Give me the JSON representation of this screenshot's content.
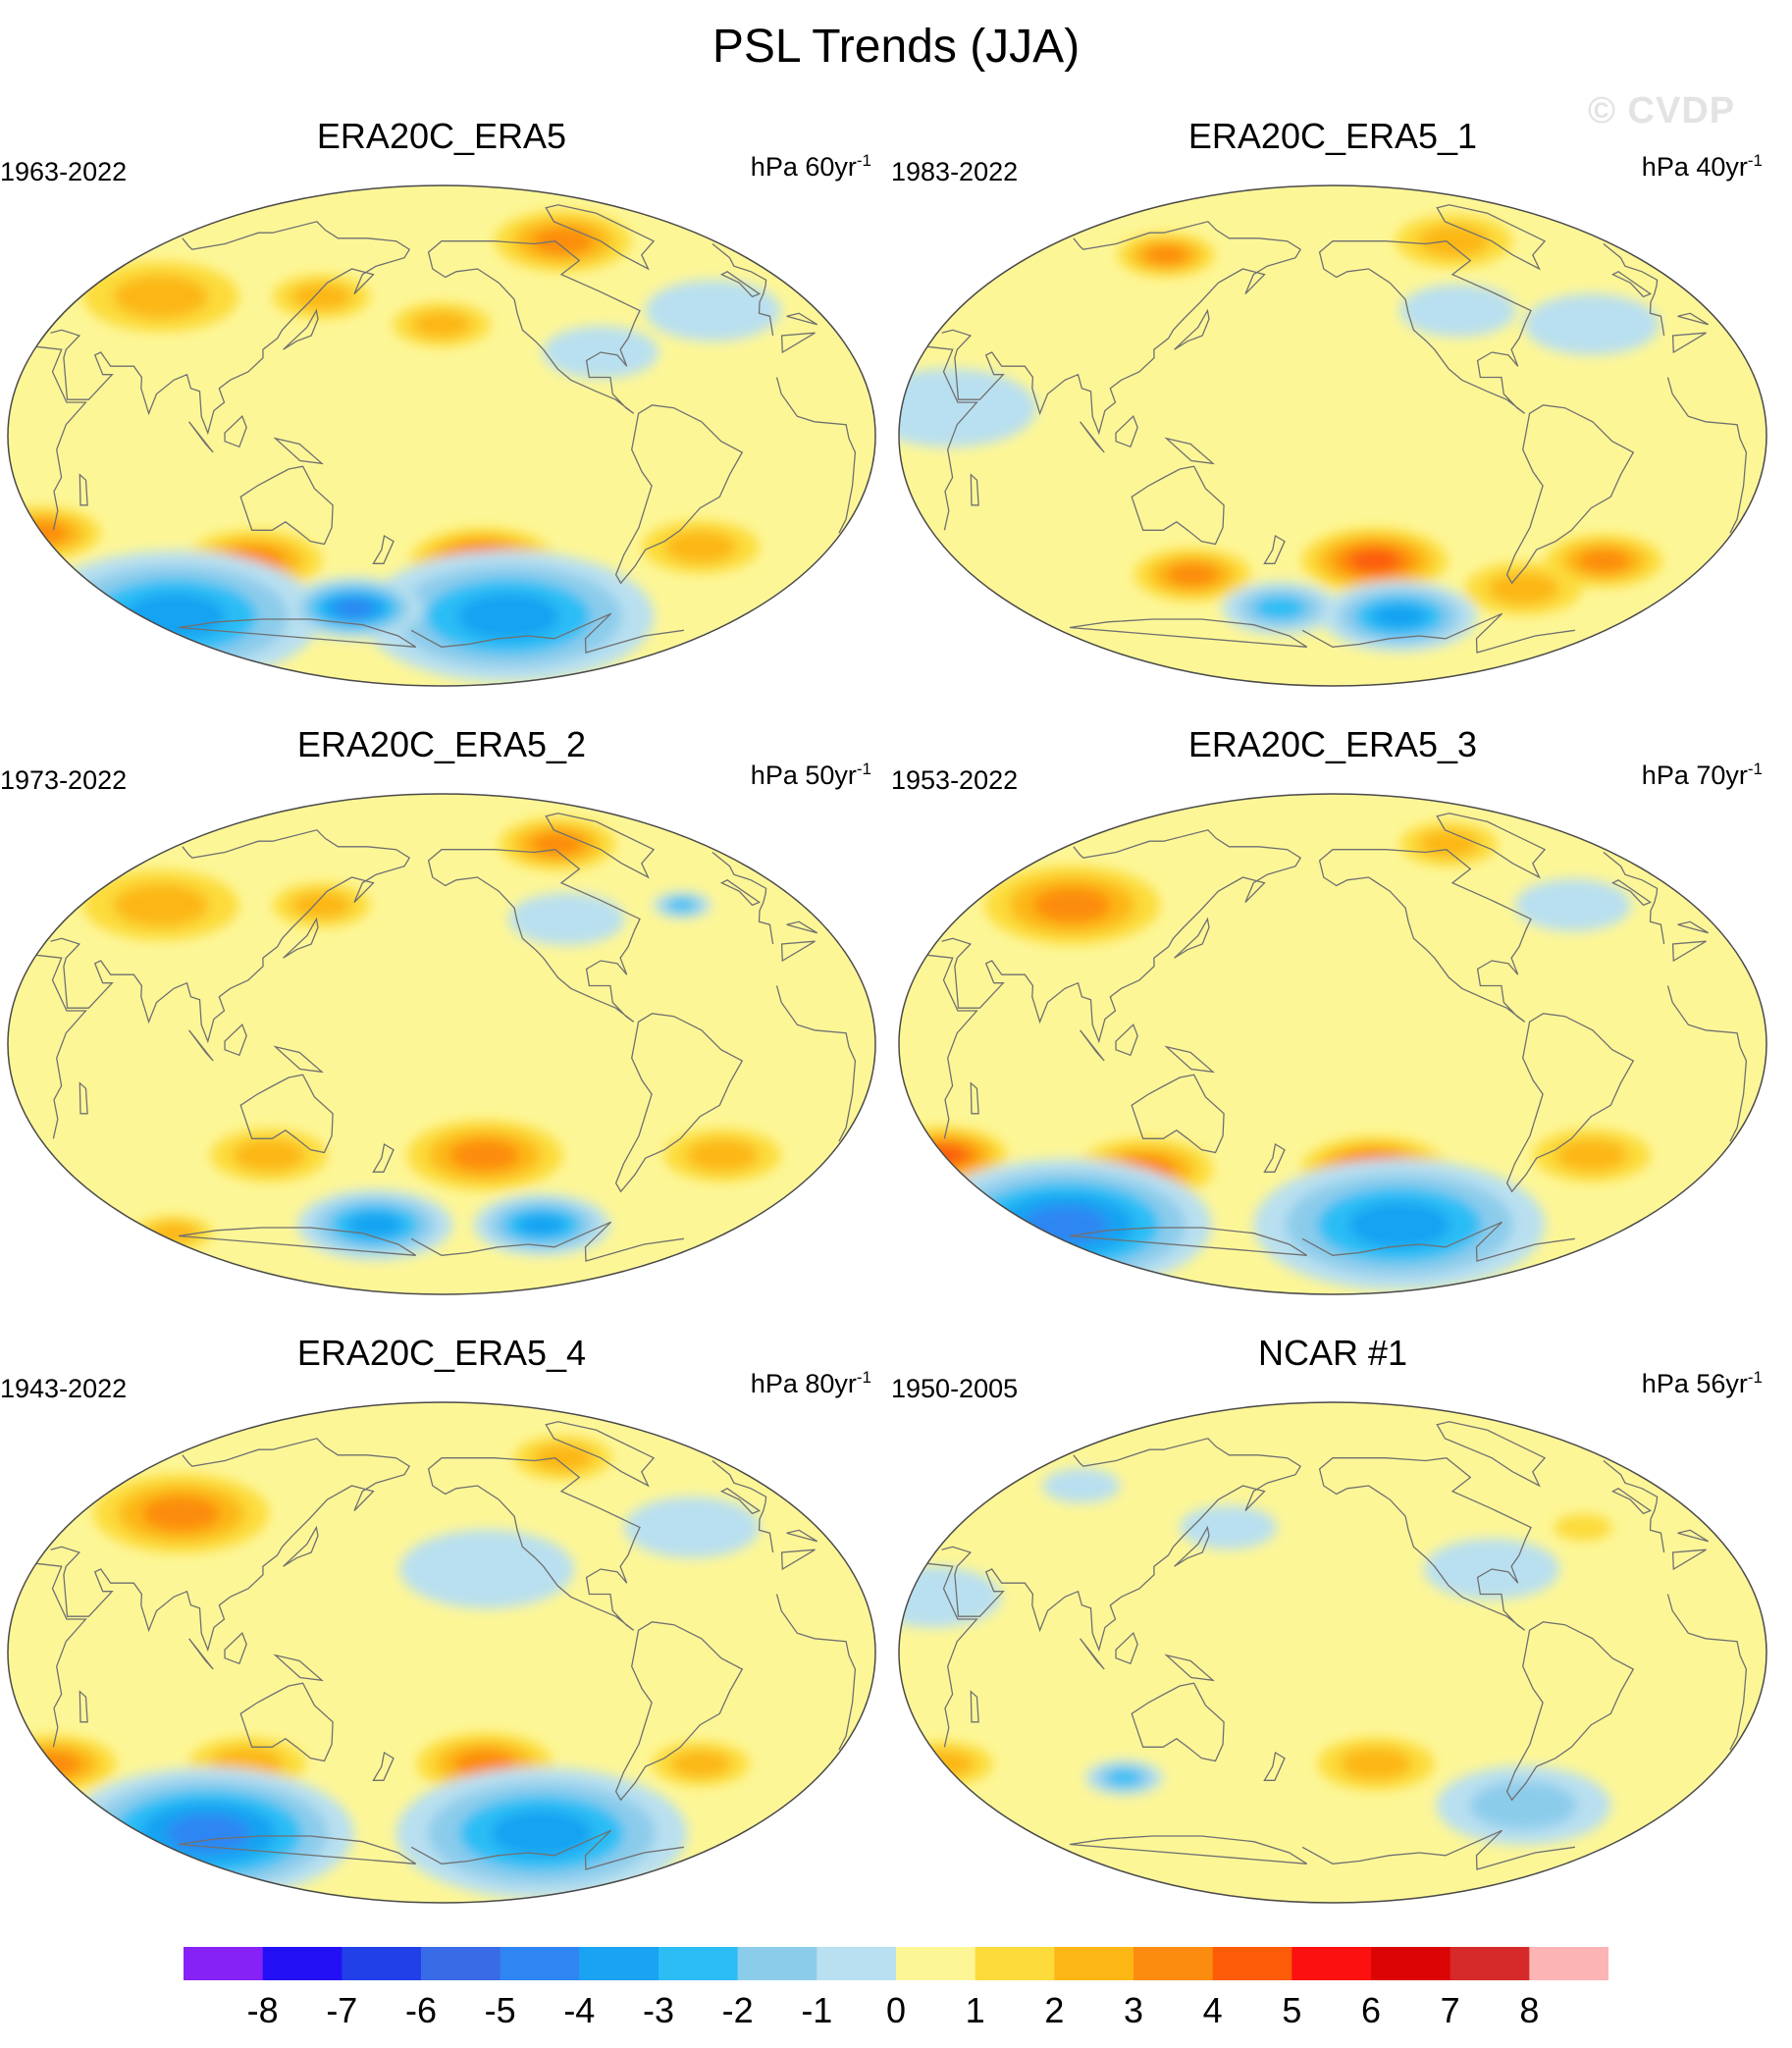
{
  "title": "PSL Trends (JJA)",
  "watermark": "© CVDP",
  "panels": [
    {
      "title": "ERA20C_ERA5",
      "years": "1963-2022",
      "units_base": "hPa 60yr",
      "units_exp": "-1",
      "field": [
        {
          "lon": -80,
          "lat": 70,
          "r": 0.14,
          "v": 3
        },
        {
          "lon": 60,
          "lat": 50,
          "r": 0.16,
          "v": 2
        },
        {
          "lon": 140,
          "lat": 50,
          "r": 0.1,
          "v": 2
        },
        {
          "lon": -160,
          "lat": 40,
          "r": 0.1,
          "v": 2
        },
        {
          "lon": 20,
          "lat": -35,
          "r": 0.12,
          "v": 3
        },
        {
          "lon": 110,
          "lat": -45,
          "r": 0.14,
          "v": 3
        },
        {
          "lon": -140,
          "lat": -45,
          "r": 0.15,
          "v": 4
        },
        {
          "lon": -40,
          "lat": -40,
          "r": 0.12,
          "v": 2
        },
        {
          "lon": -30,
          "lat": 45,
          "r": 0.14,
          "v": -1
        },
        {
          "lon": -90,
          "lat": 30,
          "r": 0.12,
          "v": -1
        },
        {
          "lon": -120,
          "lat": -65,
          "r": 0.3,
          "v": -4
        },
        {
          "lon": 40,
          "lat": -65,
          "r": 0.3,
          "v": -4
        },
        {
          "lon": 150,
          "lat": -62,
          "r": 0.14,
          "v": -5
        }
      ]
    },
    {
      "title": "ERA20C_ERA5_1",
      "years": "1983-2022",
      "units_base": "hPa 40yr",
      "units_exp": "-1",
      "field": [
        {
          "lon": -80,
          "lat": 70,
          "r": 0.12,
          "v": 2
        },
        {
          "lon": 100,
          "lat": 65,
          "r": 0.1,
          "v": 3
        },
        {
          "lon": -140,
          "lat": -45,
          "r": 0.15,
          "v": 4
        },
        {
          "lon": 130,
          "lat": -50,
          "r": 0.12,
          "v": 3
        },
        {
          "lon": -30,
          "lat": -45,
          "r": 0.12,
          "v": 3
        },
        {
          "lon": -60,
          "lat": -55,
          "r": 0.12,
          "v": 2
        },
        {
          "lon": -40,
          "lat": 40,
          "r": 0.14,
          "v": -1
        },
        {
          "lon": -100,
          "lat": 45,
          "r": 0.12,
          "v": -1
        },
        {
          "lon": 40,
          "lat": 10,
          "r": 0.18,
          "v": -1
        },
        {
          "lon": -120,
          "lat": -65,
          "r": 0.16,
          "v": -4
        },
        {
          "lon": 170,
          "lat": -62,
          "r": 0.12,
          "v": -3
        }
      ]
    },
    {
      "title": "ERA20C_ERA5_2",
      "years": "1973-2022",
      "units_base": "hPa 50yr",
      "units_exp": "-1",
      "field": [
        {
          "lon": -80,
          "lat": 72,
          "r": 0.12,
          "v": 3
        },
        {
          "lon": 60,
          "lat": 50,
          "r": 0.16,
          "v": 2
        },
        {
          "lon": 140,
          "lat": 50,
          "r": 0.1,
          "v": 2
        },
        {
          "lon": -140,
          "lat": -40,
          "r": 0.16,
          "v": 3
        },
        {
          "lon": 120,
          "lat": -40,
          "r": 0.12,
          "v": 2
        },
        {
          "lon": -30,
          "lat": -40,
          "r": 0.12,
          "v": 2
        },
        {
          "lon": -40,
          "lat": 50,
          "r": 0.06,
          "v": -3
        },
        {
          "lon": -100,
          "lat": 45,
          "r": 0.12,
          "v": -1
        },
        {
          "lon": 160,
          "lat": -65,
          "r": 0.16,
          "v": -4
        },
        {
          "lon": -100,
          "lat": -65,
          "r": 0.14,
          "v": -4
        },
        {
          "lon": 30,
          "lat": -68,
          "r": 0.08,
          "v": 2
        }
      ]
    },
    {
      "title": "ERA20C_ERA5_3",
      "years": "1953-2022",
      "units_base": "hPa 70yr",
      "units_exp": "-1",
      "field": [
        {
          "lon": 70,
          "lat": 50,
          "r": 0.18,
          "v": 3
        },
        {
          "lon": -80,
          "lat": 72,
          "r": 0.1,
          "v": 2
        },
        {
          "lon": 20,
          "lat": -40,
          "r": 0.13,
          "v": 4
        },
        {
          "lon": 110,
          "lat": -45,
          "r": 0.14,
          "v": 3
        },
        {
          "lon": -140,
          "lat": -45,
          "r": 0.15,
          "v": 4
        },
        {
          "lon": -40,
          "lat": -40,
          "r": 0.12,
          "v": 2
        },
        {
          "lon": -40,
          "lat": 50,
          "r": 0.12,
          "v": -1
        },
        {
          "lon": -120,
          "lat": -65,
          "r": 0.3,
          "v": -4
        },
        {
          "lon": 40,
          "lat": -65,
          "r": 0.3,
          "v": -5
        }
      ]
    },
    {
      "title": "ERA20C_ERA5_4",
      "years": "1943-2022",
      "units_base": "hPa 80yr",
      "units_exp": "-1",
      "field": [
        {
          "lon": 70,
          "lat": 50,
          "r": 0.18,
          "v": 3
        },
        {
          "lon": -80,
          "lat": 70,
          "r": 0.1,
          "v": 2
        },
        {
          "lon": 20,
          "lat": -40,
          "r": 0.13,
          "v": 3
        },
        {
          "lon": 110,
          "lat": -40,
          "r": 0.12,
          "v": 2
        },
        {
          "lon": -140,
          "lat": -40,
          "r": 0.14,
          "v": 3
        },
        {
          "lon": -40,
          "lat": -40,
          "r": 0.1,
          "v": 2
        },
        {
          "lon": -140,
          "lat": 30,
          "r": 0.18,
          "v": -1
        },
        {
          "lon": -40,
          "lat": 45,
          "r": 0.14,
          "v": -1
        },
        {
          "lon": 60,
          "lat": -65,
          "r": 0.3,
          "v": -5
        },
        {
          "lon": -100,
          "lat": -65,
          "r": 0.3,
          "v": -4
        }
      ]
    },
    {
      "title": "NCAR #1",
      "years": "1950-2005",
      "units_base": "hPa 56yr",
      "units_exp": "-1",
      "field": [
        {
          "lon": -40,
          "lat": 45,
          "r": 0.06,
          "v": 1
        },
        {
          "lon": -140,
          "lat": -40,
          "r": 0.12,
          "v": 2
        },
        {
          "lon": 20,
          "lat": -40,
          "r": 0.1,
          "v": 2
        },
        {
          "lon": 100,
          "lat": -45,
          "r": 0.08,
          "v": -3
        },
        {
          "lon": -60,
          "lat": -55,
          "r": 0.18,
          "v": -2
        },
        {
          "lon": -90,
          "lat": 30,
          "r": 0.14,
          "v": -1
        },
        {
          "lon": 30,
          "lat": 20,
          "r": 0.14,
          "v": -1
        },
        {
          "lon": 150,
          "lat": 45,
          "r": 0.1,
          "v": -1
        },
        {
          "lon": 60,
          "lat": 60,
          "r": 0.08,
          "v": -1
        }
      ]
    }
  ],
  "colorbar": {
    "labels": [
      "-8",
      "-7",
      "-6",
      "-5",
      "-4",
      "-3",
      "-2",
      "-1",
      "0",
      "1",
      "2",
      "3",
      "4",
      "5",
      "6",
      "7",
      "8"
    ],
    "colors": [
      "#8622f5",
      "#2310f5",
      "#2140e8",
      "#3a6be6",
      "#2f86f2",
      "#19a3f2",
      "#2cbdf5",
      "#8ccceb",
      "#b9e0f0",
      "#fdf697",
      "#fcdb3a",
      "#fcb715",
      "#fc8c10",
      "#fc5c07",
      "#fc1010",
      "#dc0505",
      "#d62a2a",
      "#fcb4b4"
    ]
  }
}
